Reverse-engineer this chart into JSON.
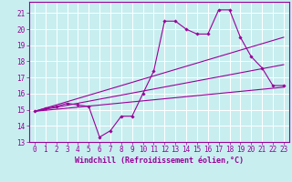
{
  "xlabel": "Windchill (Refroidissement éolien,°C)",
  "background_color": "#c8eef0",
  "grid_color": "#ffffff",
  "line_color": "#990099",
  "xlim": [
    -0.5,
    23.5
  ],
  "ylim": [
    13,
    21.7
  ],
  "yticks": [
    13,
    14,
    15,
    16,
    17,
    18,
    19,
    20,
    21
  ],
  "xticks": [
    0,
    1,
    2,
    3,
    4,
    5,
    6,
    7,
    8,
    9,
    10,
    11,
    12,
    13,
    14,
    15,
    16,
    17,
    18,
    19,
    20,
    21,
    22,
    23
  ],
  "xtick_labels": [
    "0",
    "1",
    "2",
    "3",
    "4",
    "5",
    "6",
    "7",
    "8",
    "9",
    "10",
    "11",
    "12",
    "13",
    "14",
    "15",
    "16",
    "17",
    "18",
    "19",
    "20",
    "21",
    "22",
    "23"
  ],
  "series1_x": [
    0,
    1,
    2,
    3,
    4,
    5,
    6,
    7,
    8,
    9,
    10,
    11,
    12,
    13,
    14,
    15,
    16,
    17,
    18,
    19,
    20,
    21,
    22,
    23
  ],
  "series1_y": [
    14.9,
    15.1,
    15.2,
    15.4,
    15.3,
    15.2,
    13.3,
    13.7,
    14.6,
    14.6,
    16.0,
    17.4,
    20.5,
    20.5,
    20.0,
    19.7,
    19.7,
    21.2,
    21.2,
    19.5,
    18.3,
    17.6,
    16.5,
    16.5
  ],
  "series2_x": [
    0,
    23
  ],
  "series2_y": [
    14.9,
    16.4
  ],
  "series3_x": [
    0,
    23
  ],
  "series3_y": [
    14.9,
    17.8
  ],
  "series4_x": [
    0,
    23
  ],
  "series4_y": [
    14.9,
    19.5
  ],
  "tick_fontsize": 5.5,
  "xlabel_fontsize": 6.0
}
